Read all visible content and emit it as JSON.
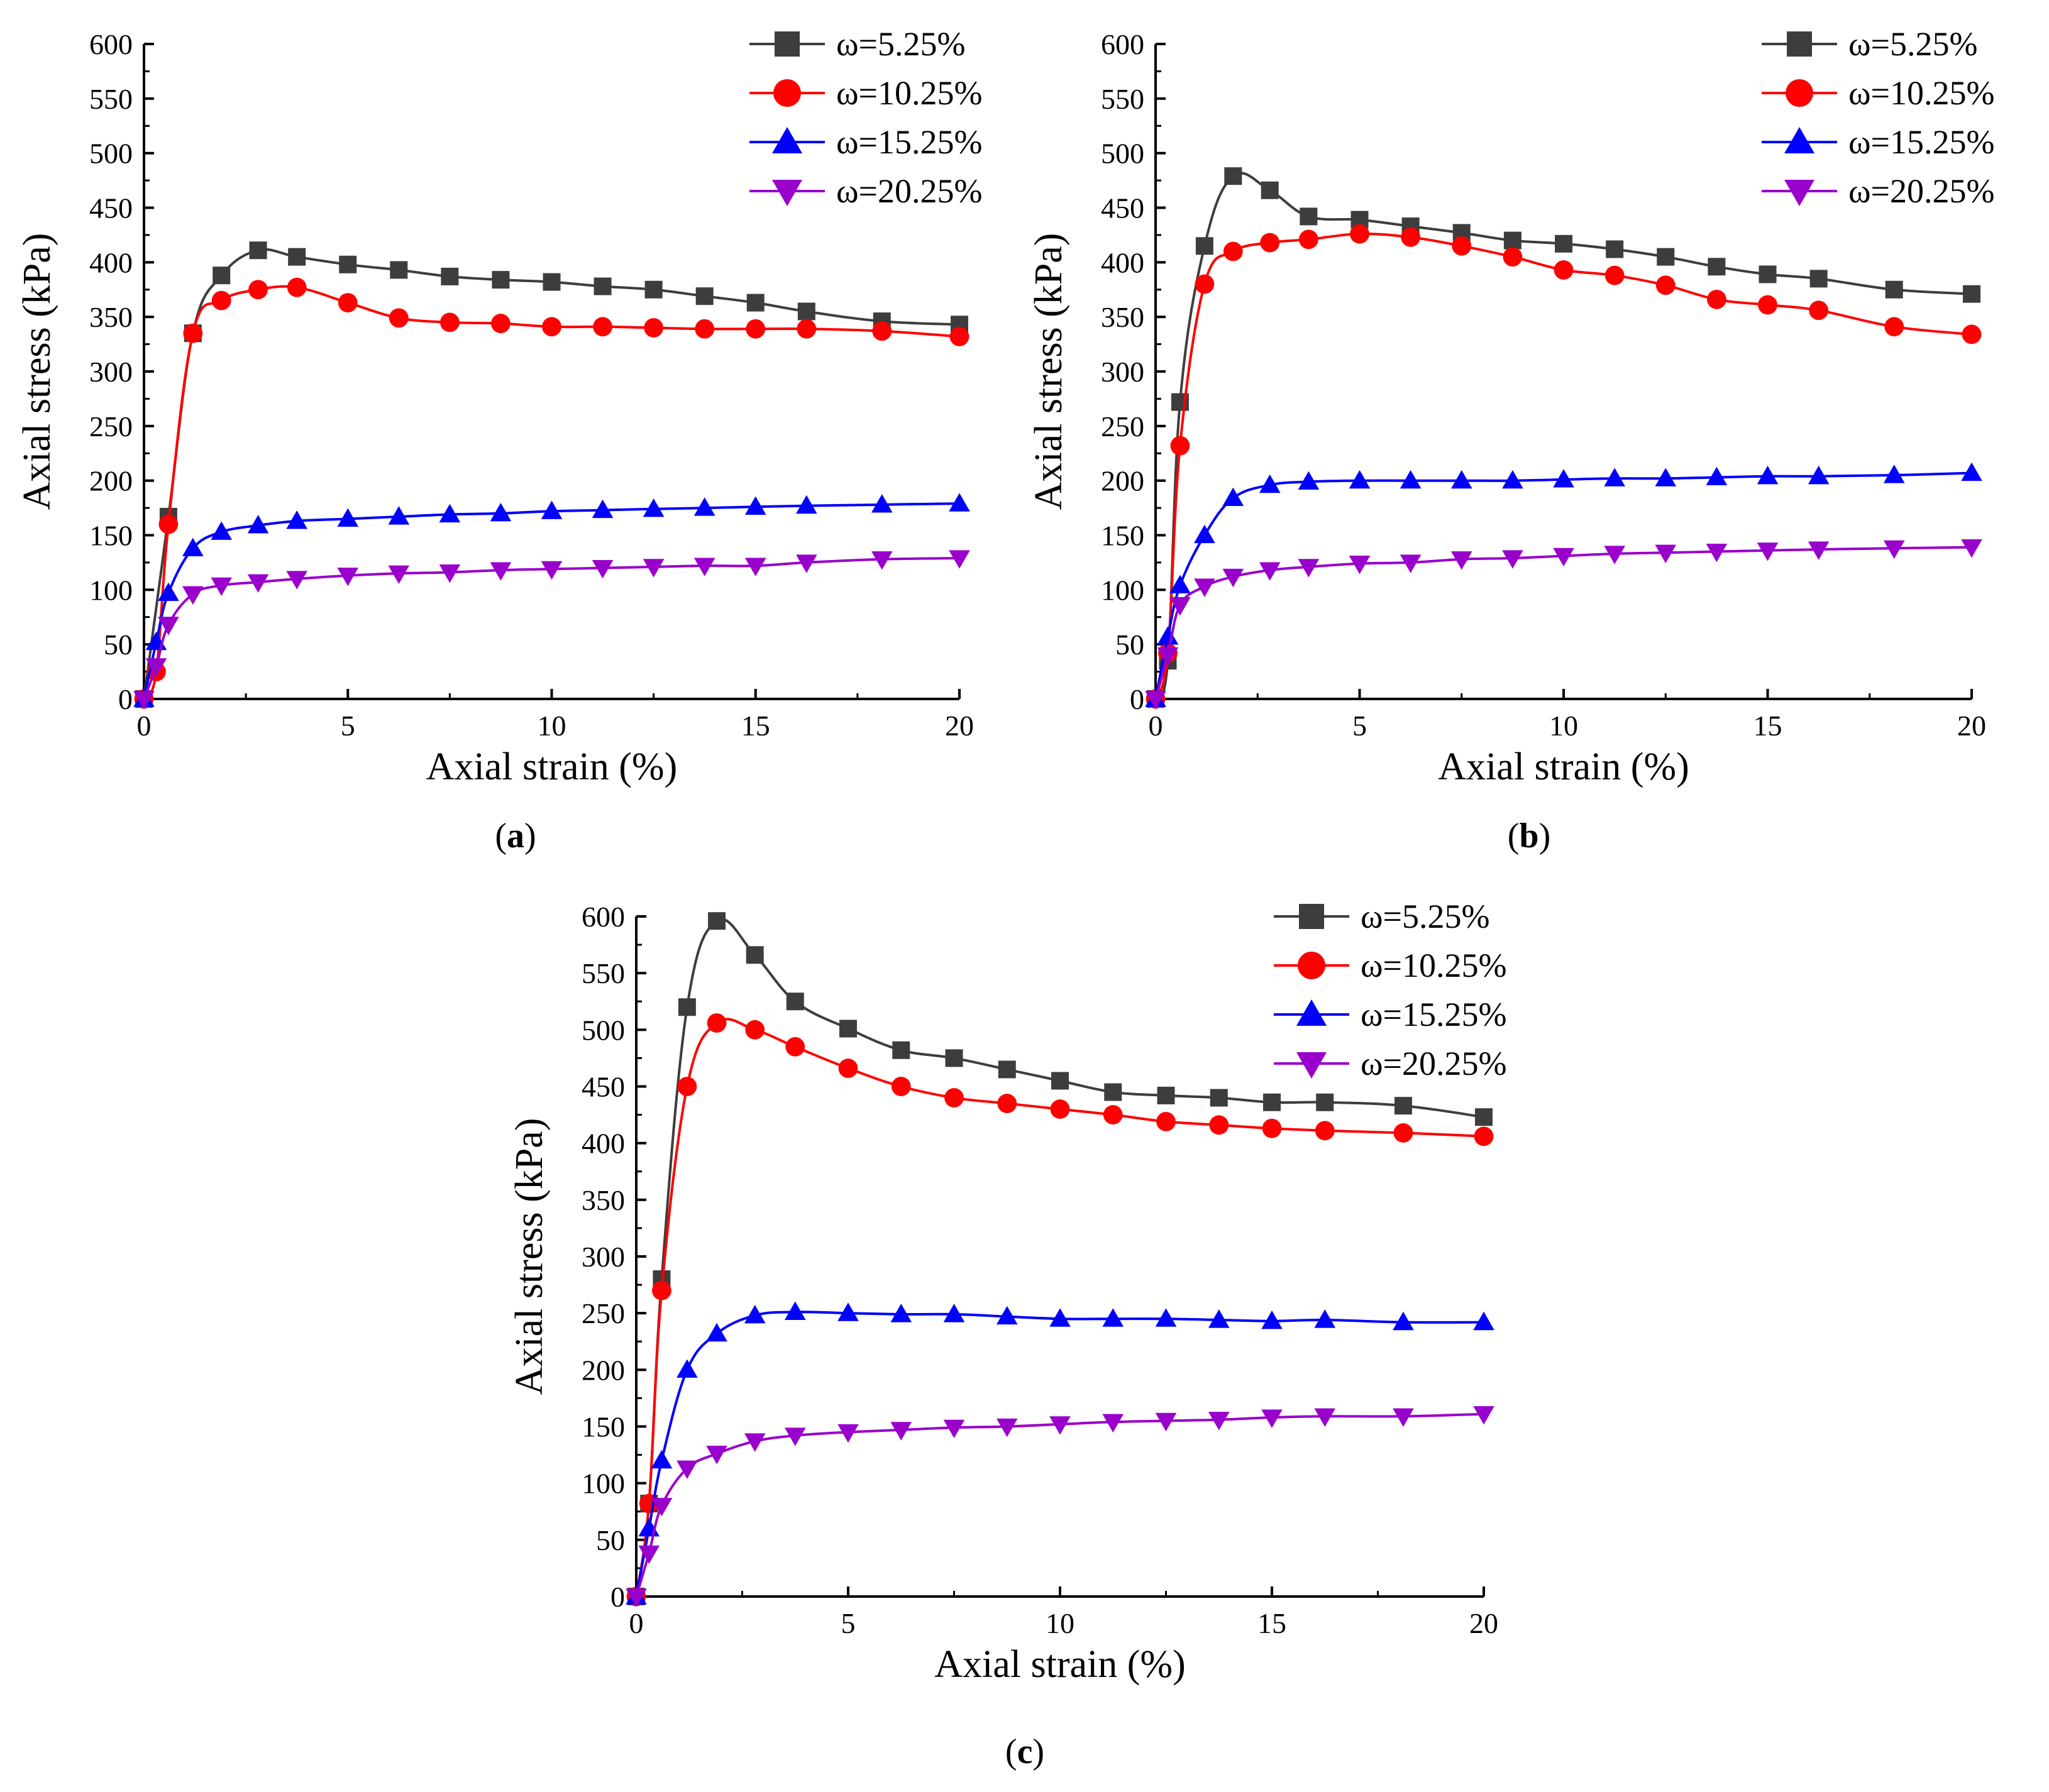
{
  "figure": {
    "panel_labels": [
      "a",
      "b",
      "c"
    ]
  },
  "legend_marker_colors": {
    "s1": "#3d3d3d",
    "s2": "#ff0000",
    "s3": "#0000ff",
    "s4": "#9900cc"
  },
  "chart_data": [
    {
      "type": "line",
      "panel": "a",
      "xlabel": "Axial strain (%)",
      "ylabel": "Axial stress (kPa)",
      "xlim": [
        0,
        20
      ],
      "ylim": [
        0,
        600
      ],
      "xticks": [
        0,
        5,
        10,
        15,
        20
      ],
      "yticks": [
        0,
        50,
        100,
        150,
        200,
        250,
        300,
        350,
        400,
        450,
        500,
        550,
        600
      ],
      "legend_position": "top-right",
      "series": [
        {
          "name": "ω=5.25%",
          "marker": "square",
          "color": "#3d3d3d",
          "x": [
            0,
            0.6,
            1.2,
            1.9,
            2.8,
            3.75,
            5,
            6.25,
            7.5,
            8.75,
            10,
            11.25,
            12.5,
            13.75,
            15,
            16.25,
            18.1,
            20
          ],
          "y": [
            0,
            167,
            335,
            388,
            411,
            405,
            398,
            393,
            387,
            384,
            382,
            378,
            375,
            369,
            363,
            355,
            346,
            343
          ]
        },
        {
          "name": "ω=10.25%",
          "marker": "circle",
          "color": "#ff0000",
          "x": [
            0,
            0.3,
            0.6,
            1.2,
            1.9,
            2.8,
            3.75,
            5,
            6.25,
            7.5,
            8.75,
            10,
            11.25,
            12.5,
            13.75,
            15,
            16.25,
            18.1,
            20
          ],
          "y": [
            0,
            25,
            160,
            335,
            365,
            375,
            377,
            363,
            349,
            345,
            344,
            341,
            341,
            340,
            339,
            339,
            339,
            337,
            332
          ]
        },
        {
          "name": "ω=15.25%",
          "marker": "triangle-up",
          "color": "#0000ff",
          "x": [
            0,
            0.3,
            0.6,
            1.2,
            1.9,
            2.8,
            3.75,
            5,
            6.25,
            7.5,
            8.75,
            10,
            11.25,
            12.5,
            13.75,
            15,
            16.25,
            18.1,
            20
          ],
          "y": [
            0,
            52,
            97,
            138,
            153,
            159,
            163,
            165,
            167,
            169,
            170,
            172,
            173,
            174,
            175,
            176,
            177,
            178,
            179
          ]
        },
        {
          "name": "ω=20.25%",
          "marker": "triangle-down",
          "color": "#9900cc",
          "x": [
            0,
            0.3,
            0.6,
            1.2,
            1.9,
            2.8,
            3.75,
            5,
            6.25,
            7.5,
            8.75,
            10,
            11.25,
            12.5,
            13.75,
            15,
            16.25,
            18.1,
            20
          ],
          "y": [
            0,
            30,
            68,
            96,
            104,
            107,
            110,
            113,
            115,
            116,
            118,
            119,
            120,
            121,
            122,
            122,
            125,
            128,
            129
          ]
        }
      ]
    },
    {
      "type": "line",
      "panel": "b",
      "xlabel": "Axial strain (%)",
      "ylabel": "Axial stress (kPa)",
      "xlim": [
        0,
        20
      ],
      "ylim": [
        0,
        600
      ],
      "xticks": [
        0,
        5,
        10,
        15,
        20
      ],
      "yticks": [
        0,
        50,
        100,
        150,
        200,
        250,
        300,
        350,
        400,
        450,
        500,
        550,
        600
      ],
      "legend_position": "top-right",
      "series": [
        {
          "name": "ω=5.25%",
          "marker": "square",
          "color": "#3d3d3d",
          "x": [
            0,
            0.3,
            0.6,
            1.2,
            1.9,
            2.8,
            3.75,
            5,
            6.25,
            7.5,
            8.75,
            10,
            11.25,
            12.5,
            13.75,
            15,
            16.25,
            18.1,
            20
          ],
          "y": [
            0,
            35,
            272,
            415,
            479,
            466,
            442,
            439,
            433,
            427,
            420,
            417,
            412,
            405,
            396,
            389,
            385,
            375,
            371
          ]
        },
        {
          "name": "ω=10.25%",
          "marker": "circle",
          "color": "#ff0000",
          "x": [
            0,
            0.3,
            0.6,
            1.2,
            1.9,
            2.8,
            3.75,
            5,
            6.25,
            7.5,
            8.75,
            10,
            11.25,
            12.5,
            13.75,
            15,
            16.25,
            18.1,
            20
          ],
          "y": [
            0,
            42,
            232,
            380,
            410,
            418,
            421,
            426,
            423,
            415,
            405,
            393,
            388,
            379,
            366,
            361,
            356,
            341,
            334
          ]
        },
        {
          "name": "ω=15.25%",
          "marker": "triangle-up",
          "color": "#0000ff",
          "x": [
            0,
            0.3,
            0.6,
            1.2,
            1.9,
            2.8,
            3.75,
            5,
            6.25,
            7.5,
            8.75,
            10,
            11.25,
            12.5,
            13.75,
            15,
            16.25,
            18.1,
            20
          ],
          "y": [
            0,
            57,
            104,
            150,
            184,
            196,
            199,
            200,
            200,
            200,
            200,
            201,
            202,
            202,
            203,
            204,
            204,
            205,
            207
          ]
        },
        {
          "name": "ω=20.25%",
          "marker": "triangle-down",
          "color": "#9900cc",
          "x": [
            0,
            0.3,
            0.6,
            1.2,
            1.9,
            2.8,
            3.75,
            5,
            6.25,
            7.5,
            8.75,
            10,
            11.25,
            12.5,
            13.75,
            15,
            16.25,
            18.1,
            20
          ],
          "y": [
            0,
            40,
            86,
            103,
            112,
            118,
            121,
            124,
            125,
            128,
            129,
            131,
            133,
            134,
            135,
            136,
            137,
            138,
            139
          ]
        }
      ]
    },
    {
      "type": "line",
      "panel": "c",
      "xlabel": "Axial strain (%)",
      "ylabel": "Axial stress (kPa)",
      "xlim": [
        0,
        20
      ],
      "ylim": [
        0,
        600
      ],
      "xticks": [
        0,
        5,
        10,
        15,
        20
      ],
      "yticks": [
        0,
        50,
        100,
        150,
        200,
        250,
        300,
        350,
        400,
        450,
        500,
        550,
        600
      ],
      "legend_position": "top-right",
      "series": [
        {
          "name": "ω=5.25%",
          "marker": "square",
          "color": "#3d3d3d",
          "x": [
            0,
            0.3,
            0.6,
            1.2,
            1.9,
            2.8,
            3.75,
            5,
            6.25,
            7.5,
            8.75,
            10,
            11.25,
            12.5,
            13.75,
            15,
            16.25,
            18.1,
            20
          ],
          "y": [
            0,
            82,
            280,
            520,
            596,
            566,
            525,
            501,
            482,
            475,
            465,
            455,
            445,
            442,
            440,
            436,
            436,
            433,
            423
          ]
        },
        {
          "name": "ω=10.25%",
          "marker": "circle",
          "color": "#ff0000",
          "x": [
            0,
            0.3,
            0.6,
            1.2,
            1.9,
            2.8,
            3.75,
            5,
            6.25,
            7.5,
            8.75,
            10,
            11.25,
            12.5,
            13.75,
            15,
            16.25,
            18.1,
            20
          ],
          "y": [
            0,
            82,
            270,
            450,
            506,
            500,
            485,
            466,
            450,
            440,
            435,
            430,
            425,
            419,
            416,
            413,
            411,
            409,
            406
          ]
        },
        {
          "name": "ω=15.25%",
          "marker": "triangle-up",
          "color": "#0000ff",
          "x": [
            0,
            0.3,
            0.6,
            1.2,
            1.9,
            2.8,
            3.75,
            5,
            6.25,
            7.5,
            8.75,
            10,
            11.25,
            12.5,
            13.75,
            15,
            16.25,
            18.1,
            20
          ],
          "y": [
            0,
            60,
            120,
            200,
            232,
            248,
            251,
            250,
            249,
            249,
            247,
            245,
            245,
            245,
            244,
            243,
            244,
            242,
            242
          ]
        },
        {
          "name": "ω=20.25%",
          "marker": "triangle-down",
          "color": "#9900cc",
          "x": [
            0,
            0.3,
            0.6,
            1.2,
            1.9,
            2.8,
            3.75,
            5,
            6.25,
            7.5,
            8.75,
            10,
            11.25,
            12.5,
            13.75,
            15,
            16.25,
            18.1,
            20
          ],
          "y": [
            0,
            38,
            80,
            113,
            126,
            137,
            142,
            145,
            147,
            149,
            150,
            152,
            154,
            155,
            156,
            158,
            159,
            159,
            161
          ]
        }
      ]
    }
  ]
}
